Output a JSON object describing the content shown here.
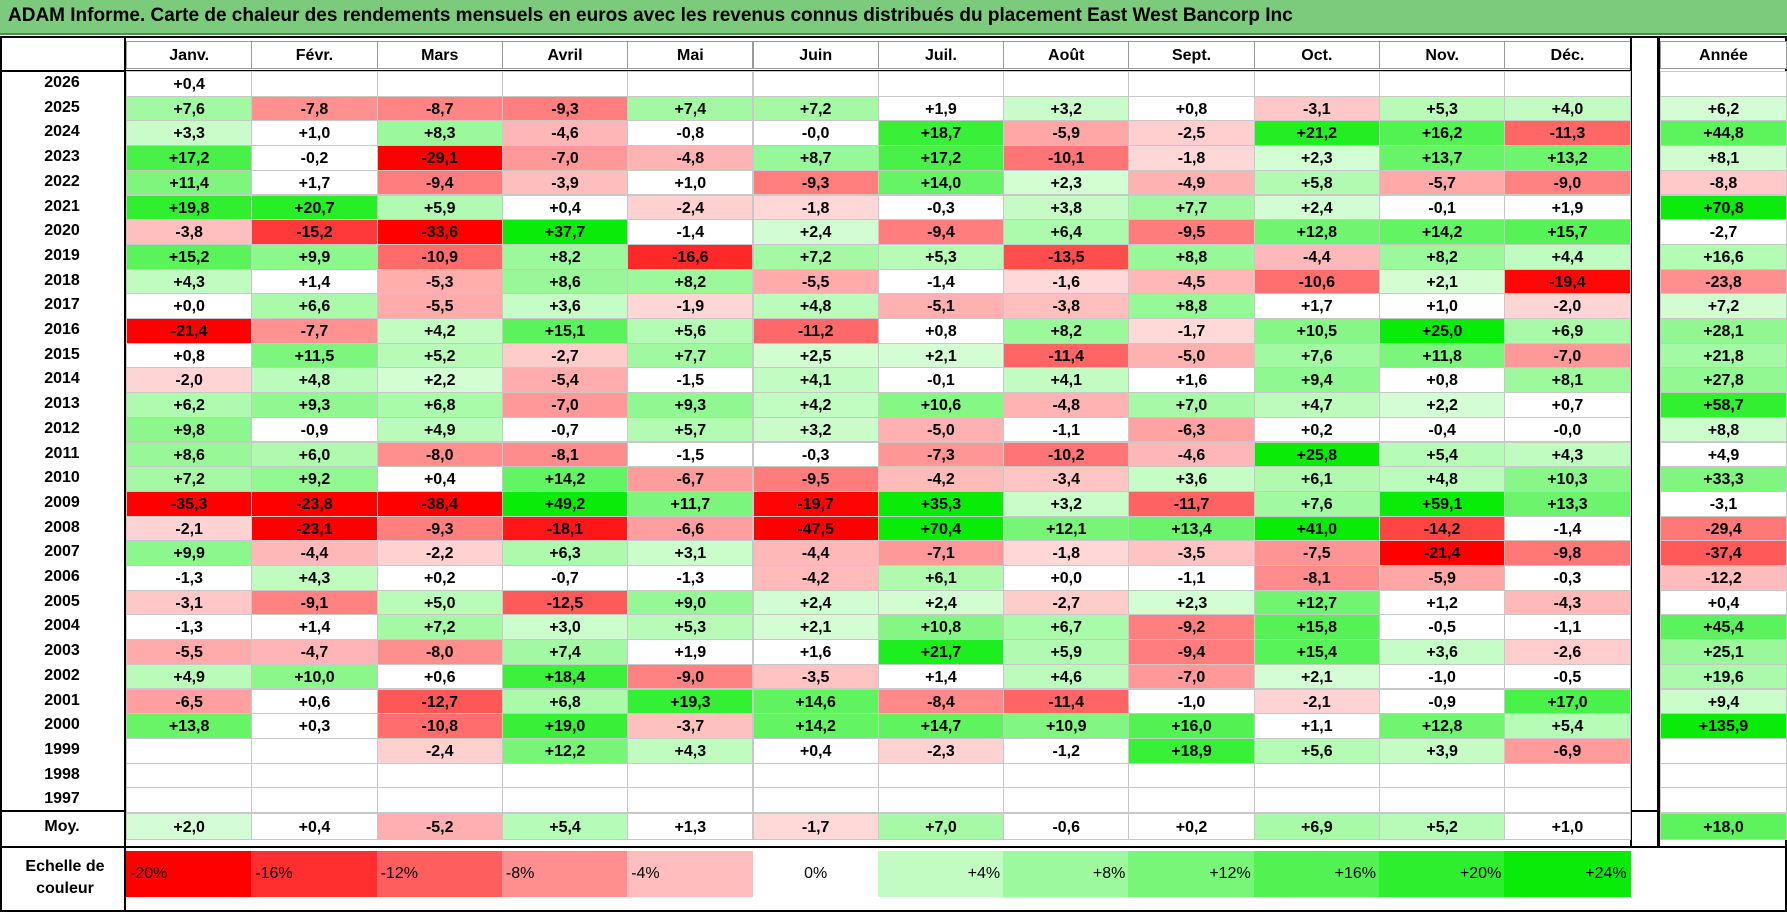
{
  "title": "ADAM Informe. Carte de chaleur des rendements mensuels en euros avec les revenus connus distribués du placement East West Bancorp Inc",
  "columns": [
    "Janv.",
    "Févr.",
    "Mars",
    "Avril",
    "Mai",
    "Juin",
    "Juil.",
    "Août",
    "Sept.",
    "Oct.",
    "Nov.",
    "Déc."
  ],
  "year_column_label": "Année",
  "average_row_label": "Moy.",
  "scale_label": [
    "Echelle de",
    "couleur"
  ],
  "chart_data": {
    "type": "heatmap",
    "title": "ADAM Informe. Carte de chaleur des rendements mensuels en euros avec les revenus connus distribués du placement East West Bancorp Inc",
    "x_categories": [
      "Janv.",
      "Févr.",
      "Mars",
      "Avril",
      "Mai",
      "Juin",
      "Juil.",
      "Août",
      "Sept.",
      "Oct.",
      "Nov.",
      "Déc."
    ],
    "rows": [
      {
        "year": "2026",
        "values": [
          "+0,4",
          "",
          "",
          "",
          "",
          "",
          "",
          "",
          "",
          "",
          "",
          ""
        ],
        "annual": ""
      },
      {
        "year": "2025",
        "values": [
          "+7,6",
          "-7,8",
          "-8,7",
          "-9,3",
          "+7,4",
          "+7,2",
          "+1,9",
          "+3,2",
          "+0,8",
          "-3,1",
          "+5,3",
          "+4,0"
        ],
        "annual": "+6,2"
      },
      {
        "year": "2024",
        "values": [
          "+3,3",
          "+1,0",
          "+8,3",
          "-4,6",
          "-0,8",
          "-0,0",
          "+18,7",
          "-5,9",
          "-2,5",
          "+21,2",
          "+16,2",
          "-11,3"
        ],
        "annual": "+44,8"
      },
      {
        "year": "2023",
        "values": [
          "+17,2",
          "-0,2",
          "-29,1",
          "-7,0",
          "-4,8",
          "+8,7",
          "+17,2",
          "-10,1",
          "-1,8",
          "+2,3",
          "+13,7",
          "+13,2"
        ],
        "annual": "+8,1"
      },
      {
        "year": "2022",
        "values": [
          "+11,4",
          "+1,7",
          "-9,4",
          "-3,9",
          "+1,0",
          "-9,3",
          "+14,0",
          "+2,3",
          "-4,9",
          "+5,8",
          "-5,7",
          "-9,0"
        ],
        "annual": "-8,8"
      },
      {
        "year": "2021",
        "values": [
          "+19,8",
          "+20,7",
          "+5,9",
          "+0,4",
          "-2,4",
          "-1,8",
          "-0,3",
          "+3,8",
          "+7,7",
          "+2,4",
          "-0,1",
          "+1,9"
        ],
        "annual": "+70,8"
      },
      {
        "year": "2020",
        "values": [
          "-3,8",
          "-15,2",
          "-33,6",
          "+37,7",
          "-1,4",
          "+2,4",
          "-9,4",
          "+6,4",
          "-9,5",
          "+12,8",
          "+14,2",
          "+15,7"
        ],
        "annual": "-2,7"
      },
      {
        "year": "2019",
        "values": [
          "+15,2",
          "+9,9",
          "-10,9",
          "+8,2",
          "-16,6",
          "+7,2",
          "+5,3",
          "-13,5",
          "+8,8",
          "-4,4",
          "+8,2",
          "+4,4"
        ],
        "annual": "+16,6"
      },
      {
        "year": "2018",
        "values": [
          "+4,3",
          "+1,4",
          "-5,3",
          "+8,6",
          "+8,2",
          "-5,5",
          "-1,4",
          "-1,6",
          "-4,5",
          "-10,6",
          "+2,1",
          "-19,4"
        ],
        "annual": "-23,8"
      },
      {
        "year": "2017",
        "values": [
          "+0,0",
          "+6,6",
          "-5,5",
          "+3,6",
          "-1,9",
          "+4,8",
          "-5,1",
          "-3,8",
          "+8,8",
          "+1,7",
          "+1,0",
          "-2,0"
        ],
        "annual": "+7,2"
      },
      {
        "year": "2016",
        "values": [
          "-21,4",
          "-7,7",
          "+4,2",
          "+15,1",
          "+5,6",
          "-11,2",
          "+0,8",
          "+8,2",
          "-1,7",
          "+10,5",
          "+25,0",
          "+6,9"
        ],
        "annual": "+28,1"
      },
      {
        "year": "2015",
        "values": [
          "+0,8",
          "+11,5",
          "+5,2",
          "-2,7",
          "+7,7",
          "+2,5",
          "+2,1",
          "-11,4",
          "-5,0",
          "+7,6",
          "+11,8",
          "-7,0"
        ],
        "annual": "+21,8"
      },
      {
        "year": "2014",
        "values": [
          "-2,0",
          "+4,8",
          "+2,2",
          "-5,4",
          "-1,5",
          "+4,1",
          "-0,1",
          "+4,1",
          "+1,6",
          "+9,4",
          "+0,8",
          "+8,1"
        ],
        "annual": "+27,8"
      },
      {
        "year": "2013",
        "values": [
          "+6,2",
          "+9,3",
          "+6,8",
          "-7,0",
          "+9,3",
          "+4,2",
          "+10,6",
          "-4,8",
          "+7,0",
          "+4,7",
          "+2,2",
          "+0,7"
        ],
        "annual": "+58,7"
      },
      {
        "year": "2012",
        "values": [
          "+9,8",
          "-0,9",
          "+4,9",
          "-0,7",
          "+5,7",
          "+3,2",
          "-5,0",
          "-1,1",
          "-6,3",
          "+0,2",
          "-0,4",
          "-0,0"
        ],
        "annual": "+8,8"
      },
      {
        "year": "2011",
        "values": [
          "+8,6",
          "+6,0",
          "-8,0",
          "-8,1",
          "-1,5",
          "-0,3",
          "-7,3",
          "-10,2",
          "-4,6",
          "+25,8",
          "+5,4",
          "+4,3"
        ],
        "annual": "+4,9"
      },
      {
        "year": "2010",
        "values": [
          "+7,2",
          "+9,2",
          "+0,4",
          "+14,2",
          "-6,7",
          "-9,5",
          "-4,2",
          "-3,4",
          "+3,6",
          "+6,1",
          "+4,8",
          "+10,3"
        ],
        "annual": "+33,3"
      },
      {
        "year": "2009",
        "values": [
          "-35,3",
          "-23,8",
          "-38,4",
          "+49,2",
          "+11,7",
          "-19,7",
          "+35,3",
          "+3,2",
          "-11,7",
          "+7,6",
          "+59,1",
          "+13,3"
        ],
        "annual": "-3,1"
      },
      {
        "year": "2008",
        "values": [
          "-2,1",
          "-23,1",
          "-9,3",
          "-18,1",
          "-6,6",
          "-47,5",
          "+70,4",
          "+12,1",
          "+13,4",
          "+41,0",
          "-14,2",
          "-1,4"
        ],
        "annual": "-29,4"
      },
      {
        "year": "2007",
        "values": [
          "+9,9",
          "-4,4",
          "-2,2",
          "+6,3",
          "+3,1",
          "-4,4",
          "-7,1",
          "-1,8",
          "-3,5",
          "-7,5",
          "-21,4",
          "-9,8"
        ],
        "annual": "-37,4"
      },
      {
        "year": "2006",
        "values": [
          "-1,3",
          "+4,3",
          "+0,2",
          "-0,7",
          "-1,3",
          "-4,2",
          "+6,1",
          "+0,0",
          "-1,1",
          "-8,1",
          "-5,9",
          "-0,3"
        ],
        "annual": "-12,2"
      },
      {
        "year": "2005",
        "values": [
          "-3,1",
          "-9,1",
          "+5,0",
          "-12,5",
          "+9,0",
          "+2,4",
          "+2,4",
          "-2,7",
          "+2,3",
          "+12,7",
          "+1,2",
          "-4,3"
        ],
        "annual": "+0,4"
      },
      {
        "year": "2004",
        "values": [
          "-1,3",
          "+1,4",
          "+7,2",
          "+3,0",
          "+5,3",
          "+2,1",
          "+10,8",
          "+6,7",
          "-9,2",
          "+15,8",
          "-0,5",
          "-1,1"
        ],
        "annual": "+45,4"
      },
      {
        "year": "2003",
        "values": [
          "-5,5",
          "-4,7",
          "-8,0",
          "+7,4",
          "+1,9",
          "+1,6",
          "+21,7",
          "+5,9",
          "-9,4",
          "+15,4",
          "+3,6",
          "-2,6"
        ],
        "annual": "+25,1"
      },
      {
        "year": "2002",
        "values": [
          "+4,9",
          "+10,0",
          "+0,6",
          "+18,4",
          "-9,0",
          "-3,5",
          "+1,4",
          "+4,6",
          "-7,0",
          "+2,1",
          "-1,0",
          "-0,5"
        ],
        "annual": "+19,6"
      },
      {
        "year": "2001",
        "values": [
          "-6,5",
          "+0,6",
          "-12,7",
          "+6,8",
          "+19,3",
          "+14,6",
          "-8,4",
          "-11,4",
          "-1,0",
          "-2,1",
          "-0,9",
          "+17,0"
        ],
        "annual": "+9,4"
      },
      {
        "year": "2000",
        "values": [
          "+13,8",
          "+0,3",
          "-10,8",
          "+19,0",
          "-3,7",
          "+14,2",
          "+14,7",
          "+10,9",
          "+16,0",
          "+1,1",
          "+12,8",
          "+5,4"
        ],
        "annual": "+135,9"
      },
      {
        "year": "1999",
        "values": [
          "",
          "",
          "-2,4",
          "+12,2",
          "+4,3",
          "+0,4",
          "-2,3",
          "-1,2",
          "+18,9",
          "+5,6",
          "+3,9",
          "-6,9"
        ],
        "annual": ""
      },
      {
        "year": "1998",
        "values": [
          "",
          "",
          "",
          "",
          "",
          "",
          "",
          "",
          "",
          "",
          "",
          ""
        ],
        "annual": ""
      },
      {
        "year": "1997",
        "values": [
          "",
          "",
          "",
          "",
          "",
          "",
          "",
          "",
          "",
          "",
          "",
          ""
        ],
        "annual": ""
      }
    ],
    "averages": [
      "+2,0",
      "+0,4",
      "-5,2",
      "+5,4",
      "+1,3",
      "-1,7",
      "+7,0",
      "-0,6",
      "+0,2",
      "+6,9",
      "+5,2",
      "+1,0"
    ],
    "average_annual": "+18,0",
    "color_scale": {
      "labels": [
        "-20%",
        "-16%",
        "-12%",
        "-8%",
        "-4%",
        "0%",
        "+4%",
        "+8%",
        "+12%",
        "+16%",
        "+20%",
        "+24%"
      ],
      "neg_color_max": "#ff0000",
      "pos_color_max": "#00dd00",
      "neutral_color": "#ffffff"
    }
  }
}
